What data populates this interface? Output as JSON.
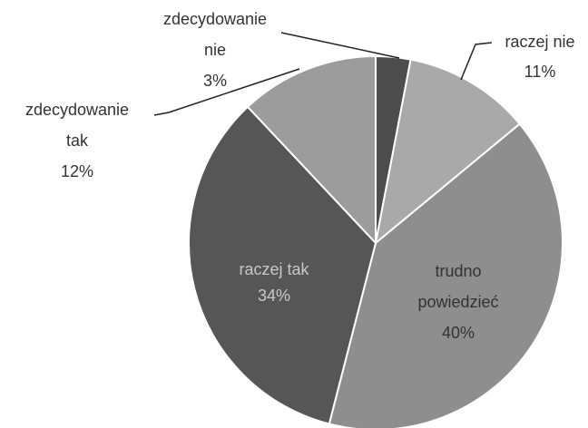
{
  "chart_data": {
    "type": "pie",
    "categories": [
      "zdecydowanie nie",
      "raczej nie",
      "trudno powiedzieć",
      "raczej tak",
      "zdecydowanie tak"
    ],
    "values": [
      3,
      11,
      40,
      34,
      12
    ],
    "value_labels": [
      "3%",
      "11%",
      "40%",
      "34%",
      "12%"
    ],
    "colors": [
      "#4d4d4d",
      "#a9a9a9",
      "#8e8e8e",
      "#565656",
      "#9c9c9c"
    ]
  }
}
